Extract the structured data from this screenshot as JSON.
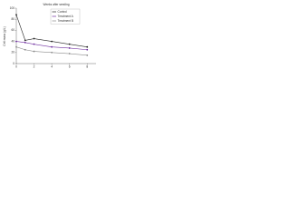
{
  "chart_data": {
    "type": "line",
    "x_label": "Weeks after seeding",
    "y_label": "Cell mass (g/L)",
    "x": [
      0,
      1,
      2,
      4,
      6,
      8
    ],
    "series": [
      {
        "name": "Control",
        "color": "#222222",
        "values": [
          88,
          42,
          45,
          40,
          35,
          30
        ]
      },
      {
        "name": "Treatment A",
        "color": "#7030a0",
        "values": [
          40,
          38,
          35,
          30,
          28,
          25
        ]
      },
      {
        "name": "Treatment B",
        "color": "#8c8c8c",
        "values": [
          30,
          25,
          22,
          20,
          18,
          15
        ]
      }
    ],
    "xlim": [
      0,
      9
    ],
    "xticks": [
      0,
      2,
      4,
      6,
      8
    ],
    "ylim": [
      0,
      100
    ],
    "yticks": [
      0,
      20,
      40,
      60,
      80,
      100
    ],
    "legend": "upper right"
  }
}
